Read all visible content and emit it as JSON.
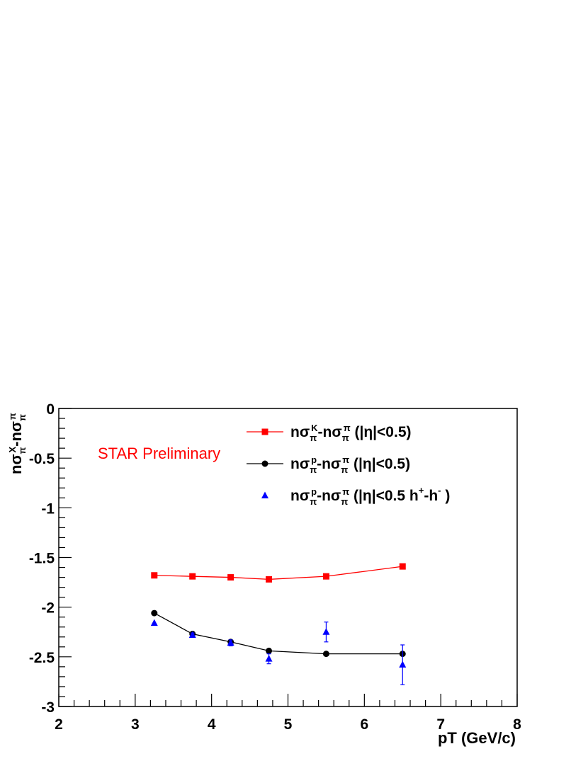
{
  "chart_data": {
    "type": "scatter",
    "title": "",
    "xlabel": "pT (GeV/c)",
    "ylabel": "nσ_π^X-nσ_π^π",
    "xlim": [
      2,
      8
    ],
    "ylim": [
      -3,
      0
    ],
    "x_ticks": [
      "2",
      "3",
      "4",
      "5",
      "6",
      "7",
      "8"
    ],
    "y_ticks": [
      "0",
      "-0.5",
      "-1",
      "-1.5",
      "-2",
      "-2.5",
      "-3"
    ],
    "grid": false,
    "annotation": "STAR Preliminary",
    "legend_position": "top-right",
    "series": [
      {
        "name": "nσ_π^K-nσ_π^π (|η|<0.5)",
        "legend": {
          "main": "nσ",
          "sub": "π",
          "sup": "K",
          "main2": "-nσ",
          "sub2": "π",
          "sup2": "π",
          "tail": " (|η|<0.5)"
        },
        "color": "#ff0000",
        "marker": "square",
        "line": true,
        "x": [
          3.25,
          3.75,
          4.25,
          4.75,
          5.5,
          6.5
        ],
        "y": [
          -1.68,
          -1.69,
          -1.7,
          -1.72,
          -1.69,
          -1.59
        ],
        "yerr": [
          0,
          0,
          0,
          0,
          0,
          0
        ]
      },
      {
        "name": "nσ_π^p-nσ_π^π (|η|<0.5)",
        "legend": {
          "main": "nσ",
          "sub": "π",
          "sup": "p",
          "main2": "-nσ",
          "sub2": "π",
          "sup2": "π",
          "tail": " (|η|<0.5)"
        },
        "color": "#000000",
        "marker": "circle",
        "line": true,
        "x": [
          3.25,
          3.75,
          4.25,
          4.75,
          5.5,
          6.5
        ],
        "y": [
          -2.06,
          -2.27,
          -2.35,
          -2.44,
          -2.47,
          -2.47
        ],
        "yerr": [
          0,
          0,
          0,
          0,
          0,
          0
        ]
      },
      {
        "name": "nσ_π^p-nσ_π^π (|η|<0.5 h^+-h^- )",
        "legend": {
          "main": "nσ",
          "sub": "π",
          "sup": "p",
          "main2": "-nσ",
          "sub2": "π",
          "sup2": "π",
          "tail": " (|η|<0.5 h",
          "sup3": "+",
          "tail2": "-h",
          "sup4": "-",
          "tail3": " )"
        },
        "color": "#0000ff",
        "marker": "triangle",
        "line": false,
        "x": [
          3.25,
          3.75,
          4.25,
          4.75,
          5.5,
          6.5
        ],
        "y": [
          -2.16,
          -2.28,
          -2.36,
          -2.52,
          -2.25,
          -2.58
        ],
        "yerr": [
          0,
          0.02,
          0.03,
          0.05,
          0.1,
          0.2
        ]
      }
    ]
  }
}
